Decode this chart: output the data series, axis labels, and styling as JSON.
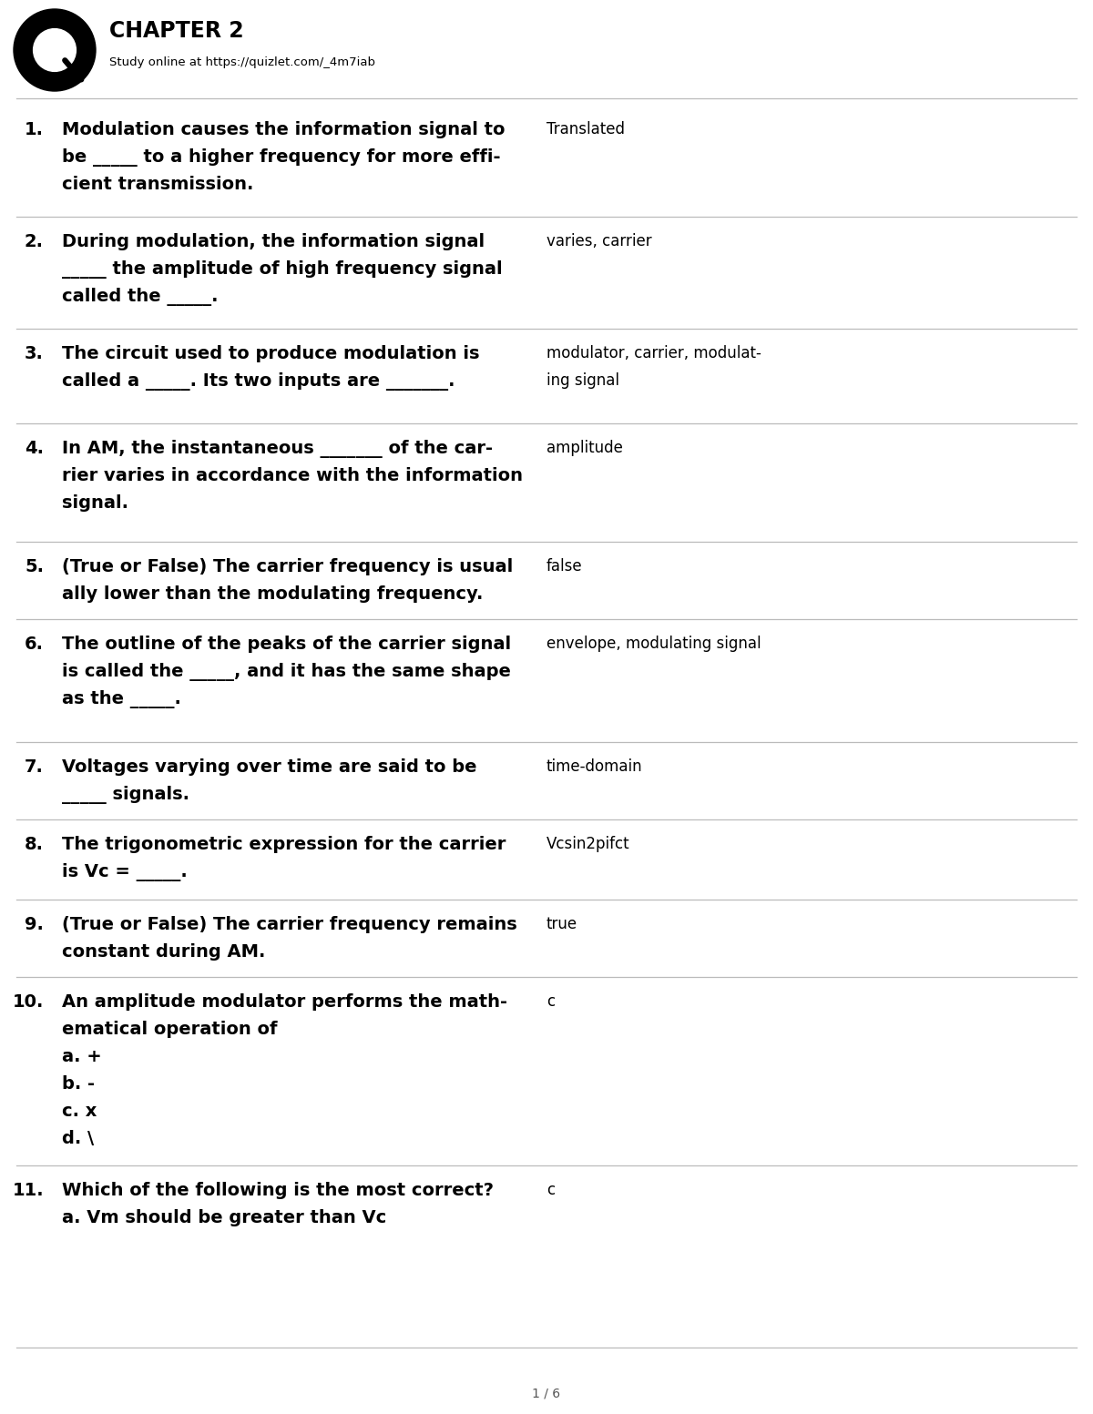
{
  "title": "CHAPTER 2",
  "subtitle": "Study online at https://quizlet.com/_4m7iab",
  "bg_color": "#ffffff",
  "text_color": "#000000",
  "sep_color": "#cccccc",
  "footer_text": "1 / 6",
  "items": [
    {
      "num": "1.",
      "q_lines": [
        "Modulation causes the information signal to",
        "be _____ to a higher frequency for more effi-",
        "cient transmission."
      ],
      "a_lines": [
        "Translated"
      ],
      "num_lines": 3
    },
    {
      "num": "2.",
      "q_lines": [
        "During modulation, the information signal",
        "_____ the amplitude of high frequency signal",
        "called the _____."
      ],
      "a_lines": [
        "varies, carrier"
      ],
      "num_lines": 3
    },
    {
      "num": "3.",
      "q_lines": [
        "The circuit used to produce modulation is",
        "called a _____. Its two inputs are _______."
      ],
      "a_lines": [
        "modulator, carrier, modulat-",
        "ing signal"
      ],
      "num_lines": 2
    },
    {
      "num": "4.",
      "q_lines": [
        "In AM, the instantaneous _______ of the car-",
        "rier varies in accordance with the information",
        "signal."
      ],
      "a_lines": [
        "amplitude"
      ],
      "num_lines": 3
    },
    {
      "num": "5.",
      "q_lines": [
        "(True or False) The carrier frequency is usual",
        "ally lower than the modulating frequency."
      ],
      "a_lines": [
        "false"
      ],
      "num_lines": 2
    },
    {
      "num": "6.",
      "q_lines": [
        "The outline of the peaks of the carrier signal",
        "is called the _____, and it has the same shape",
        "as the _____."
      ],
      "a_lines": [
        "envelope, modulating signal"
      ],
      "num_lines": 3
    },
    {
      "num": "7.",
      "q_lines": [
        "Voltages varying over time are said to be",
        "_____ signals."
      ],
      "a_lines": [
        "time-domain"
      ],
      "num_lines": 2
    },
    {
      "num": "8.",
      "q_lines": [
        "The trigonometric expression for the carrier",
        "is Vc = _____."
      ],
      "a_lines": [
        "Vcsin2pifct"
      ],
      "num_lines": 2
    },
    {
      "num": "9.",
      "q_lines": [
        "(True or False) The carrier frequency remains",
        "constant during AM."
      ],
      "a_lines": [
        "true"
      ],
      "num_lines": 2
    },
    {
      "num": "10.",
      "q_lines": [
        "An amplitude modulator performs the math-",
        "ematical operation of",
        "a. +",
        "b. -",
        "c. x",
        "d. \\"
      ],
      "a_lines": [
        "c"
      ],
      "num_lines": 6
    },
    {
      "num": "11.",
      "q_lines": [
        "Which of the following is the most correct?",
        "a. Vm should be greater than Vc"
      ],
      "a_lines": [
        "c"
      ],
      "num_lines": 2
    }
  ]
}
